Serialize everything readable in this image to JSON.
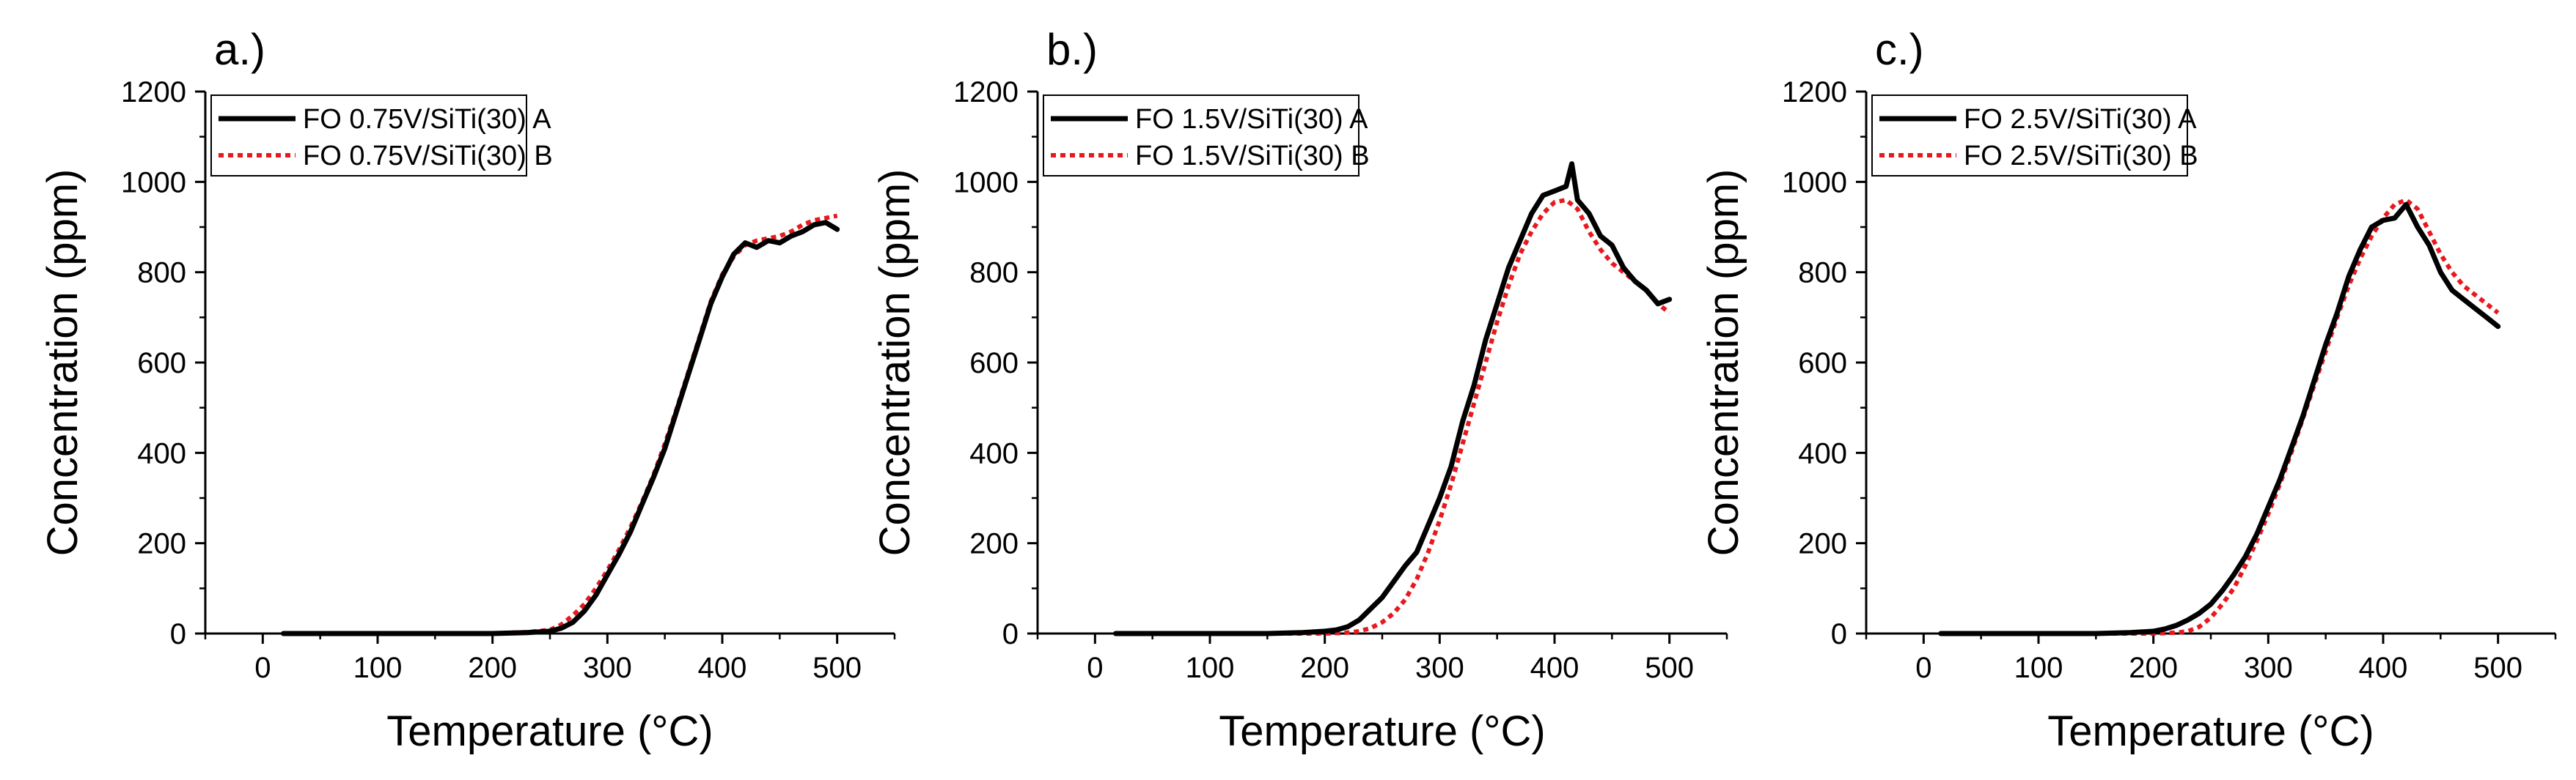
{
  "chart_data": [
    {
      "type": "line",
      "panel_label": "a.)",
      "xlabel": "Temperature (°C)",
      "ylabel": "Concentration (ppm)",
      "xlim": [
        -50,
        550
      ],
      "ylim": [
        0,
        1200
      ],
      "xticks": [
        0,
        100,
        200,
        300,
        400,
        500
      ],
      "yticks": [
        0,
        200,
        400,
        600,
        800,
        1000,
        1200
      ],
      "legend_position": "top-left",
      "series": [
        {
          "name": "FO 0.75V/SiTi(30) A",
          "color": "#000000",
          "style": "solid",
          "x": [
            18,
            50,
            100,
            150,
            200,
            230,
            250,
            260,
            270,
            280,
            290,
            300,
            310,
            320,
            330,
            340,
            350,
            360,
            370,
            380,
            390,
            400,
            410,
            420,
            430,
            440,
            450,
            460,
            470,
            480,
            490,
            500
          ],
          "y": [
            0,
            0,
            0,
            0,
            0,
            2,
            5,
            12,
            25,
            50,
            85,
            130,
            175,
            225,
            285,
            345,
            410,
            490,
            570,
            650,
            730,
            790,
            840,
            865,
            855,
            870,
            865,
            880,
            890,
            905,
            910,
            895
          ]
        },
        {
          "name": "FO 0.75V/SiTi(30) B",
          "color": "#e8191e",
          "style": "dotted",
          "x": [
            18,
            50,
            100,
            150,
            200,
            230,
            250,
            260,
            270,
            280,
            290,
            300,
            310,
            320,
            330,
            340,
            350,
            360,
            370,
            380,
            390,
            400,
            410,
            420,
            430,
            440,
            450,
            460,
            470,
            480,
            490,
            500
          ],
          "y": [
            0,
            0,
            0,
            0,
            0,
            3,
            8,
            20,
            40,
            65,
            100,
            140,
            185,
            235,
            290,
            350,
            420,
            495,
            575,
            655,
            735,
            795,
            835,
            860,
            870,
            875,
            880,
            890,
            905,
            915,
            920,
            925
          ]
        }
      ]
    },
    {
      "type": "line",
      "panel_label": "b.)",
      "xlabel": "Temperature (°C)",
      "ylabel": "Concentration (ppm)",
      "xlim": [
        -50,
        550
      ],
      "ylim": [
        0,
        1200
      ],
      "xticks": [
        0,
        100,
        200,
        300,
        400,
        500
      ],
      "yticks": [
        0,
        200,
        400,
        600,
        800,
        1000,
        1200
      ],
      "legend_position": "top-left",
      "series": [
        {
          "name": "FO 1.5V/SiTi(30) A",
          "color": "#000000",
          "style": "solid",
          "x": [
            18,
            50,
            100,
            150,
            180,
            200,
            210,
            220,
            230,
            240,
            250,
            260,
            270,
            280,
            290,
            300,
            310,
            320,
            330,
            340,
            350,
            360,
            370,
            380,
            390,
            400,
            410,
            415,
            420,
            430,
            440,
            450,
            460,
            470,
            480,
            490,
            500
          ],
          "y": [
            0,
            0,
            0,
            0,
            2,
            5,
            8,
            15,
            30,
            55,
            80,
            115,
            150,
            180,
            240,
            300,
            370,
            470,
            550,
            650,
            730,
            810,
            870,
            930,
            970,
            980,
            990,
            1040,
            960,
            930,
            880,
            860,
            810,
            780,
            760,
            730,
            740
          ]
        },
        {
          "name": "FO 1.5V/SiTi(30) B",
          "color": "#e8191e",
          "style": "dotted",
          "x": [
            18,
            50,
            100,
            150,
            200,
            220,
            230,
            240,
            250,
            260,
            270,
            280,
            290,
            300,
            310,
            320,
            330,
            340,
            350,
            360,
            370,
            380,
            390,
            400,
            410,
            420,
            430,
            440,
            450,
            460,
            470,
            480,
            490,
            500
          ],
          "y": [
            0,
            0,
            0,
            0,
            0,
            2,
            5,
            12,
            25,
            45,
            75,
            120,
            180,
            250,
            330,
            420,
            510,
            600,
            690,
            770,
            840,
            890,
            930,
            955,
            960,
            940,
            890,
            850,
            820,
            800,
            780,
            760,
            730,
            710
          ]
        }
      ]
    },
    {
      "type": "line",
      "panel_label": "c.)",
      "xlabel": "Temperature (°C)",
      "ylabel": "Concentration (ppm)",
      "xlim": [
        -50,
        550
      ],
      "ylim": [
        0,
        1200
      ],
      "xticks": [
        0,
        100,
        200,
        300,
        400,
        500
      ],
      "yticks": [
        0,
        200,
        400,
        600,
        800,
        1000,
        1200
      ],
      "legend_position": "top-left",
      "series": [
        {
          "name": "FO 2.5V/SiTi(30) A",
          "color": "#000000",
          "style": "solid",
          "x": [
            15,
            50,
            100,
            150,
            180,
            200,
            210,
            220,
            230,
            240,
            250,
            260,
            270,
            280,
            290,
            300,
            310,
            320,
            330,
            340,
            350,
            360,
            370,
            380,
            390,
            400,
            410,
            420,
            430,
            440,
            450,
            460,
            470,
            480,
            490,
            500
          ],
          "y": [
            0,
            0,
            0,
            0,
            2,
            5,
            10,
            18,
            30,
            45,
            65,
            95,
            130,
            170,
            220,
            280,
            340,
            410,
            480,
            560,
            640,
            710,
            790,
            850,
            900,
            915,
            920,
            950,
            900,
            860,
            800,
            760,
            740,
            720,
            700,
            680
          ]
        },
        {
          "name": "FO 2.5V/SiTi(30) B",
          "color": "#e8191e",
          "style": "dotted",
          "x": [
            15,
            50,
            100,
            150,
            200,
            220,
            230,
            240,
            250,
            260,
            270,
            280,
            290,
            300,
            310,
            320,
            330,
            340,
            350,
            360,
            370,
            380,
            390,
            400,
            410,
            420,
            430,
            440,
            450,
            460,
            470,
            480,
            490,
            500
          ],
          "y": [
            0,
            0,
            0,
            0,
            0,
            2,
            5,
            15,
            35,
            65,
            100,
            150,
            205,
            265,
            330,
            400,
            475,
            550,
            625,
            700,
            770,
            830,
            880,
            920,
            950,
            960,
            940,
            890,
            840,
            800,
            770,
            750,
            730,
            710
          ]
        }
      ]
    }
  ]
}
